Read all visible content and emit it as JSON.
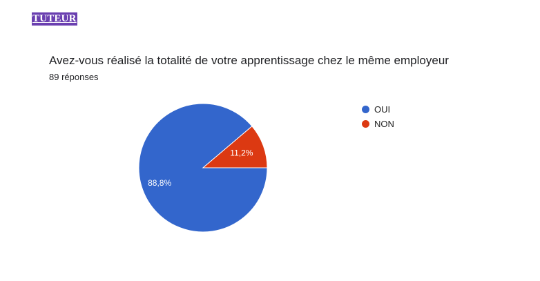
{
  "tag": "TUTEUR",
  "title": "Avez-vous réalisé la totalité de votre apprentissage chez le même employeur",
  "subtitle": "89 réponses",
  "colors": {
    "oui": "#3366cc",
    "non": "#dc3912",
    "tag_bg": "#6a3fb0"
  },
  "legend": [
    {
      "label": "OUI",
      "color": "#3366cc"
    },
    {
      "label": "NON",
      "color": "#dc3912"
    }
  ],
  "chart_data": {
    "type": "pie",
    "categories": [
      "OUI",
      "NON"
    ],
    "values": [
      88.8,
      11.2
    ],
    "labels": [
      "88,8%",
      "11,2%"
    ],
    "title": "Avez-vous réalisé la totalité de votre apprentissage chez le même employeur",
    "legend_position": "right"
  }
}
